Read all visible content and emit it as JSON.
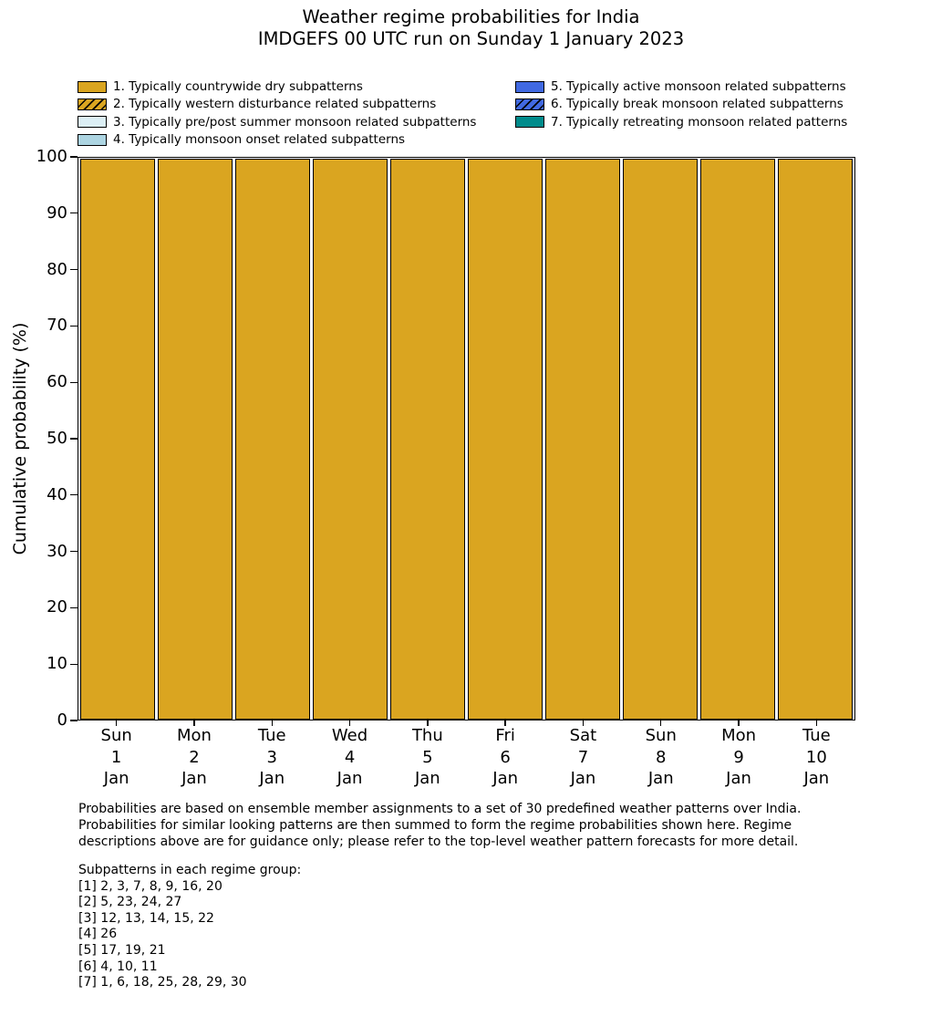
{
  "chart_data": {
    "type": "bar",
    "stacked": true,
    "title": "Weather regime probabilities for India",
    "subtitle": "IMDGEFS 00 UTC run on Sunday 1 January 2023",
    "ylabel": "Cumulative probability (%)",
    "xlabel": "",
    "ylim": [
      0,
      100
    ],
    "yticks": [
      0,
      10,
      20,
      30,
      40,
      50,
      60,
      70,
      80,
      90,
      100
    ],
    "grid": false,
    "legend_position": "above-plot-two-columns",
    "bar_edge_color": "#000000",
    "categories": [
      [
        "Sun",
        "1",
        "Jan"
      ],
      [
        "Mon",
        "2",
        "Jan"
      ],
      [
        "Tue",
        "3",
        "Jan"
      ],
      [
        "Wed",
        "4",
        "Jan"
      ],
      [
        "Thu",
        "5",
        "Jan"
      ],
      [
        "Fri",
        "6",
        "Jan"
      ],
      [
        "Sat",
        "7",
        "Jan"
      ],
      [
        "Sun",
        "8",
        "Jan"
      ],
      [
        "Mon",
        "9",
        "Jan"
      ],
      [
        "Tue",
        "10",
        "Jan"
      ]
    ],
    "series": [
      {
        "name": "1. Typically countrywide dry subpatterns",
        "color": "#DAA520",
        "hatch": false,
        "values": [
          100,
          100,
          100,
          100,
          100,
          100,
          100,
          100,
          100,
          100
        ]
      },
      {
        "name": "2. Typically western disturbance related subpatterns",
        "color": "#DAA520",
        "hatch": true,
        "values": [
          0,
          0,
          0,
          0,
          0,
          0,
          0,
          0,
          0,
          0
        ]
      },
      {
        "name": "3. Typically pre/post summer monsoon related subpatterns",
        "color": "#DCEFF5",
        "hatch": false,
        "values": [
          0,
          0,
          0,
          0,
          0,
          0,
          0,
          0,
          0,
          0
        ]
      },
      {
        "name": "4. Typically monsoon onset related subpatterns",
        "color": "#ADD5E2",
        "hatch": false,
        "values": [
          0,
          0,
          0,
          0,
          0,
          0,
          0,
          0,
          0,
          0
        ]
      },
      {
        "name": "5. Typically active monsoon related subpatterns",
        "color": "#4169E1",
        "hatch": false,
        "values": [
          0,
          0,
          0,
          0,
          0,
          0,
          0,
          0,
          0,
          0
        ]
      },
      {
        "name": "6. Typically break monsoon related subpatterns",
        "color": "#4169E1",
        "hatch": true,
        "values": [
          0,
          0,
          0,
          0,
          0,
          0,
          0,
          0,
          0,
          0
        ]
      },
      {
        "name": "7. Typically retreating monsoon related patterns",
        "color": "#008B8B",
        "hatch": false,
        "values": [
          0,
          0,
          0,
          0,
          0,
          0,
          0,
          0,
          0,
          0
        ]
      }
    ]
  },
  "legend": {
    "items": [
      {
        "label": "1. Typically countrywide dry subpatterns",
        "color": "#DAA520",
        "hatch": false,
        "column": "left"
      },
      {
        "label": "2. Typically western disturbance related subpatterns",
        "color": "#DAA520",
        "hatch": true,
        "column": "left"
      },
      {
        "label": "3. Typically pre/post summer monsoon related subpatterns",
        "color": "#DCEFF5",
        "hatch": false,
        "column": "left"
      },
      {
        "label": "4. Typically monsoon onset related subpatterns",
        "color": "#ADD5E2",
        "hatch": false,
        "column": "left"
      },
      {
        "label": "5. Typically active monsoon related subpatterns",
        "color": "#4169E1",
        "hatch": false,
        "column": "right"
      },
      {
        "label": "6. Typically break monsoon related subpatterns",
        "color": "#4169E1",
        "hatch": true,
        "column": "right"
      },
      {
        "label": "7. Typically retreating monsoon related patterns",
        "color": "#008B8B",
        "hatch": false,
        "column": "right"
      }
    ]
  },
  "footer": {
    "note_lines": [
      "Probabilities are based on ensemble member assignments to a set of 30 predefined weather patterns over India.",
      "Probabilities for similar looking patterns are then summed to form the regime probabilities shown here. Regime",
      "descriptions above are for guidance only; please refer to the top-level weather pattern forecasts for more detail."
    ],
    "subpatterns_header": "Subpatterns in each regime group:",
    "subpattern_lines": [
      "[1] 2, 3, 7, 8, 9, 16, 20",
      "[2] 5, 23, 24, 27",
      "[3] 12, 13, 14, 15, 22",
      "[4] 26",
      "[5] 17, 19, 21",
      "[6] 4, 10, 11",
      "[7] 1, 6, 18, 25, 28, 29, 30"
    ]
  },
  "colors": {
    "bar_fill": "#DAA520",
    "edge": "#000000",
    "background": "#ffffff"
  }
}
